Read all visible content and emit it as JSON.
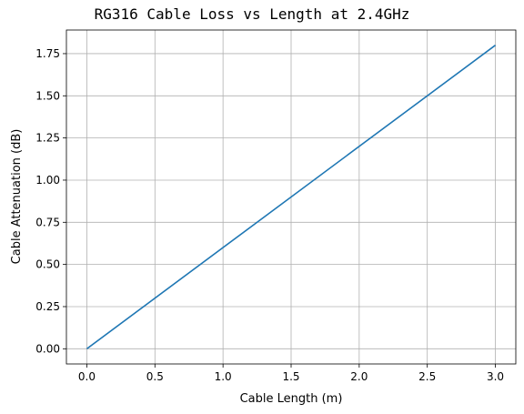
{
  "chart_data": {
    "type": "line",
    "title": "RG316 Cable Loss vs Length at 2.4GHz",
    "xlabel": "Cable Length (m)",
    "ylabel": "Cable Attenuation (dB)",
    "xlim": [
      -0.15,
      3.15
    ],
    "ylim": [
      -0.09,
      1.89
    ],
    "xticks": [
      0.0,
      0.5,
      1.0,
      1.5,
      2.0,
      2.5,
      3.0
    ],
    "xtick_labels": [
      "0.0",
      "0.5",
      "1.0",
      "1.5",
      "2.0",
      "2.5",
      "3.0"
    ],
    "yticks": [
      0.0,
      0.25,
      0.5,
      0.75,
      1.0,
      1.25,
      1.5,
      1.75
    ],
    "ytick_labels": [
      "0.00",
      "0.25",
      "0.50",
      "0.75",
      "1.00",
      "1.25",
      "1.50",
      "1.75"
    ],
    "grid": true,
    "series": [
      {
        "color": "#1f77b4",
        "x": [
          0.0,
          3.0
        ],
        "y": [
          0.0,
          1.8
        ]
      }
    ]
  }
}
